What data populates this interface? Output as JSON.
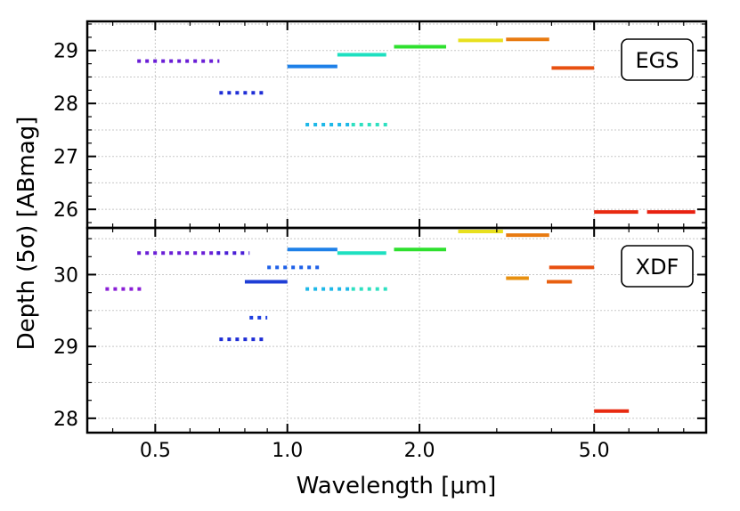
{
  "chart_data": {
    "type": "filter-depth",
    "xlabel": "Wavelength [μm]",
    "ylabel": "Depth (5σ) [ABmag]",
    "x_scale": "log",
    "xlim": [
      0.35,
      9.0
    ],
    "xticks": [
      {
        "value": 0.5,
        "label": "0.5"
      },
      {
        "value": 1.0,
        "label": "1.0"
      },
      {
        "value": 2.0,
        "label": "2.0"
      },
      {
        "value": 5.0,
        "label": "5.0"
      }
    ],
    "grid": "dotted",
    "panels": [
      {
        "name": "EGS",
        "label": "EGS",
        "ylim": [
          25.65,
          29.55
        ],
        "yticks": [
          {
            "value": 26,
            "label": "26"
          },
          {
            "value": 27,
            "label": "27"
          },
          {
            "value": 28,
            "label": "28"
          },
          {
            "value": 29,
            "label": "29"
          }
        ],
        "segments": [
          {
            "x0": 0.455,
            "x1": 0.7,
            "depth": 28.8,
            "style": "dotted",
            "color": "#6a1fd6"
          },
          {
            "x0": 0.7,
            "x1": 0.9,
            "depth": 28.2,
            "style": "dotted",
            "color": "#1f2ed6"
          },
          {
            "x0": 1.0,
            "x1": 1.3,
            "depth": 28.7,
            "style": "solid",
            "color": "#1e80e8"
          },
          {
            "x0": 1.1,
            "x1": 1.4,
            "depth": 27.6,
            "style": "dotted",
            "color": "#1eb8e8"
          },
          {
            "x0": 1.4,
            "x1": 1.7,
            "depth": 27.6,
            "style": "dotted",
            "color": "#2ee0c0"
          },
          {
            "x0": 1.3,
            "x1": 1.68,
            "depth": 28.92,
            "style": "solid",
            "color": "#1ee0c0"
          },
          {
            "x0": 1.75,
            "x1": 2.3,
            "depth": 29.07,
            "style": "solid",
            "color": "#2ee02e"
          },
          {
            "x0": 2.45,
            "x1": 3.1,
            "depth": 29.19,
            "style": "solid",
            "color": "#e8e01e"
          },
          {
            "x0": 3.15,
            "x1": 3.95,
            "depth": 29.21,
            "style": "solid",
            "color": "#e87a10"
          },
          {
            "x0": 4.0,
            "x1": 5.0,
            "depth": 28.67,
            "style": "solid",
            "color": "#e85010"
          },
          {
            "x0": 5.0,
            "x1": 6.3,
            "depth": 25.95,
            "style": "solid",
            "color": "#e82a10"
          },
          {
            "x0": 6.6,
            "x1": 8.5,
            "depth": 25.95,
            "style": "solid",
            "color": "#e82010"
          }
        ]
      },
      {
        "name": "XDF",
        "label": "XDF",
        "ylim": [
          27.8,
          30.65
        ],
        "yticks": [
          {
            "value": 28,
            "label": "28"
          },
          {
            "value": 29,
            "label": "29"
          },
          {
            "value": 30,
            "label": "30"
          }
        ],
        "segments": [
          {
            "x0": 0.385,
            "x1": 0.47,
            "depth": 29.8,
            "style": "dotted",
            "color": "#8a1fd6"
          },
          {
            "x0": 0.455,
            "x1": 0.7,
            "depth": 30.3,
            "style": "dotted",
            "color": "#6a1fd6"
          },
          {
            "x0": 0.69,
            "x1": 0.82,
            "depth": 30.3,
            "style": "dotted",
            "color": "#4a1fd6"
          },
          {
            "x0": 0.7,
            "x1": 0.9,
            "depth": 29.1,
            "style": "dotted",
            "color": "#1f2ed6"
          },
          {
            "x0": 0.8,
            "x1": 1.0,
            "depth": 29.9,
            "style": "solid",
            "color": "#1e3ed6"
          },
          {
            "x0": 0.82,
            "x1": 0.9,
            "depth": 29.4,
            "style": "dotted",
            "color": "#1e3ee0"
          },
          {
            "x0": 0.9,
            "x1": 1.2,
            "depth": 30.1,
            "style": "dotted",
            "color": "#1e60e8"
          },
          {
            "x0": 1.0,
            "x1": 1.3,
            "depth": 30.35,
            "style": "solid",
            "color": "#1e80e8"
          },
          {
            "x0": 1.1,
            "x1": 1.4,
            "depth": 29.8,
            "style": "dotted",
            "color": "#1eb8e8"
          },
          {
            "x0": 1.4,
            "x1": 1.7,
            "depth": 29.8,
            "style": "dotted",
            "color": "#2ee0c0"
          },
          {
            "x0": 1.3,
            "x1": 1.68,
            "depth": 30.3,
            "style": "solid",
            "color": "#1ee0c0"
          },
          {
            "x0": 1.75,
            "x1": 2.3,
            "depth": 30.35,
            "style": "solid",
            "color": "#2ee02e"
          },
          {
            "x0": 2.45,
            "x1": 3.1,
            "depth": 30.6,
            "style": "solid",
            "color": "#e8e01e"
          },
          {
            "x0": 3.15,
            "x1": 3.95,
            "depth": 30.55,
            "style": "solid",
            "color": "#e87a10"
          },
          {
            "x0": 3.15,
            "x1": 3.55,
            "depth": 29.95,
            "style": "solid",
            "color": "#e89010"
          },
          {
            "x0": 3.9,
            "x1": 4.45,
            "depth": 29.9,
            "style": "solid",
            "color": "#e86010"
          },
          {
            "x0": 3.95,
            "x1": 5.0,
            "depth": 30.1,
            "style": "solid",
            "color": "#e85010"
          },
          {
            "x0": 5.0,
            "x1": 6.0,
            "depth": 28.1,
            "style": "solid",
            "color": "#e82a10"
          }
        ]
      }
    ]
  }
}
